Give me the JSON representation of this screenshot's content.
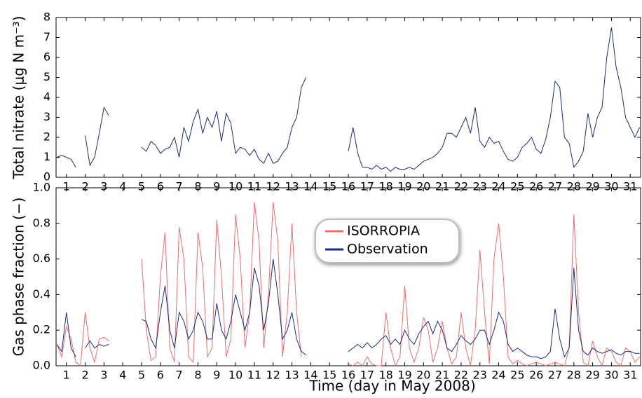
{
  "chart_data": [
    {
      "type": "line",
      "y_label": "Total nitrate (μg N m⁻³)",
      "x": [
        0.5,
        0.75,
        1,
        1.25,
        1.5,
        1.75,
        2,
        2.25,
        2.5,
        2.75,
        3,
        3.25,
        3.5,
        3.75,
        4,
        4.25,
        4.5,
        4.75,
        5,
        5.25,
        5.5,
        5.75,
        6,
        6.25,
        6.5,
        6.75,
        7,
        7.25,
        7.5,
        7.75,
        8,
        8.25,
        8.5,
        8.75,
        9,
        9.25,
        9.5,
        9.75,
        10,
        10.25,
        10.5,
        10.75,
        11,
        11.25,
        11.5,
        11.75,
        12,
        12.25,
        12.5,
        12.75,
        13,
        13.25,
        13.5,
        13.75,
        14,
        14.25,
        14.5,
        14.75,
        15,
        15.25,
        15.5,
        15.75,
        16,
        16.25,
        16.5,
        16.75,
        17,
        17.25,
        17.5,
        17.75,
        18,
        18.25,
        18.5,
        18.75,
        19,
        19.25,
        19.5,
        19.75,
        20,
        20.25,
        20.5,
        20.75,
        21,
        21.25,
        21.5,
        21.75,
        22,
        22.25,
        22.5,
        22.75,
        23,
        23.25,
        23.5,
        23.75,
        24,
        24.25,
        24.5,
        24.75,
        25,
        25.25,
        25.5,
        25.75,
        26,
        26.25,
        26.5,
        26.75,
        27,
        27.25,
        27.5,
        27.75,
        28,
        28.25,
        28.5,
        28.75,
        29,
        29.25,
        29.5,
        29.75,
        30,
        30.25,
        30.5,
        30.75,
        31,
        31.25,
        31.5
      ],
      "series": [
        {
          "name": "Observation",
          "color": "#1a2a80",
          "values": [
            1.0,
            1.1,
            1.0,
            0.9,
            0.5,
            null,
            2.1,
            0.6,
            1.0,
            2.2,
            3.5,
            3.1,
            null,
            null,
            null,
            null,
            null,
            null,
            1.5,
            1.3,
            1.8,
            1.6,
            1.2,
            1.4,
            1.5,
            2.0,
            1.0,
            2.5,
            1.8,
            2.8,
            3.4,
            2.2,
            3.0,
            2.5,
            3.3,
            1.8,
            3.2,
            2.7,
            1.2,
            1.5,
            1.4,
            1.1,
            1.4,
            0.9,
            0.7,
            1.2,
            0.7,
            0.8,
            1.2,
            1.5,
            2.5,
            3.0,
            4.5,
            5.0,
            null,
            null,
            null,
            null,
            null,
            null,
            null,
            null,
            1.3,
            2.5,
            1.2,
            0.5,
            0.5,
            0.4,
            0.6,
            0.4,
            0.5,
            0.3,
            0.5,
            0.4,
            0.4,
            0.5,
            0.4,
            0.6,
            0.8,
            0.9,
            1.0,
            1.2,
            1.5,
            2.2,
            2.2,
            2.0,
            2.5,
            3.0,
            2.2,
            3.5,
            1.8,
            1.5,
            2.0,
            1.7,
            1.8,
            1.3,
            0.9,
            0.8,
            1.0,
            1.5,
            1.7,
            2.0,
            1.4,
            1.2,
            1.9,
            3.0,
            4.8,
            4.5,
            2.0,
            1.7,
            0.5,
            0.8,
            1.3,
            3.2,
            2.0,
            3.0,
            3.5,
            6.0,
            7.5,
            5.5,
            4.5,
            3.0,
            2.5,
            2.0,
            2.5
          ]
        }
      ],
      "xlim": [
        0.45,
        31.55
      ],
      "xticks": [
        1,
        2,
        3,
        4,
        5,
        6,
        7,
        8,
        9,
        10,
        11,
        12,
        13,
        14,
        15,
        16,
        17,
        18,
        19,
        20,
        21,
        22,
        23,
        24,
        25,
        26,
        27,
        28,
        29,
        30,
        31
      ],
      "ylim": [
        0,
        8
      ],
      "yticks": [
        0,
        1,
        2,
        3,
        4,
        5,
        6,
        7,
        8
      ],
      "grid": false
    },
    {
      "type": "line",
      "y_label": "Gas phase fraction (−)",
      "x_label": "Time (day in May 2008)",
      "legend": "upper center",
      "x": [
        0.5,
        0.75,
        1,
        1.25,
        1.5,
        1.75,
        2,
        2.25,
        2.5,
        2.75,
        3,
        3.25,
        3.5,
        3.75,
        4,
        4.25,
        4.5,
        4.75,
        5,
        5.25,
        5.5,
        5.75,
        6,
        6.25,
        6.5,
        6.75,
        7,
        7.25,
        7.5,
        7.75,
        8,
        8.25,
        8.5,
        8.75,
        9,
        9.25,
        9.5,
        9.75,
        10,
        10.25,
        10.5,
        10.75,
        11,
        11.25,
        11.5,
        11.75,
        12,
        12.25,
        12.5,
        12.75,
        13,
        13.25,
        13.5,
        13.75,
        14,
        14.25,
        14.5,
        14.75,
        15,
        15.25,
        15.5,
        15.75,
        16,
        16.25,
        16.5,
        16.75,
        17,
        17.25,
        17.5,
        17.75,
        18,
        18.25,
        18.5,
        18.75,
        19,
        19.25,
        19.5,
        19.75,
        20,
        20.25,
        20.5,
        20.75,
        21,
        21.25,
        21.5,
        21.75,
        22,
        22.25,
        22.5,
        22.75,
        23,
        23.25,
        23.5,
        23.75,
        24,
        24.25,
        24.5,
        24.75,
        25,
        25.25,
        25.5,
        25.75,
        26,
        26.25,
        26.5,
        26.75,
        27,
        27.25,
        27.5,
        27.75,
        28,
        28.25,
        28.5,
        28.75,
        29,
        29.25,
        29.5,
        29.75,
        30,
        30.25,
        30.5,
        30.75,
        31,
        31.25,
        31.5
      ],
      "series": [
        {
          "name": "ISORROPIA",
          "color": "#f26b6b",
          "values": [
            0.12,
            0.05,
            0.22,
            0.15,
            0.02,
            0.0,
            0.3,
            0.1,
            0.02,
            0.15,
            0.16,
            0.14,
            null,
            null,
            null,
            null,
            null,
            null,
            0.6,
            0.2,
            0.03,
            0.05,
            0.5,
            0.75,
            0.1,
            0.02,
            0.78,
            0.6,
            0.05,
            0.02,
            0.75,
            0.55,
            0.05,
            0.1,
            0.82,
            0.5,
            0.05,
            0.15,
            0.85,
            0.6,
            0.1,
            0.3,
            0.92,
            0.7,
            0.1,
            0.4,
            0.92,
            0.7,
            0.05,
            0.3,
            0.8,
            0.3,
            0.05,
            null,
            null,
            null,
            null,
            null,
            null,
            null,
            null,
            null,
            0.01,
            0.0,
            0.02,
            0.0,
            0.05,
            0.01,
            0.0,
            0.0,
            0.3,
            0.1,
            0.0,
            0.05,
            0.45,
            0.1,
            0.02,
            0.1,
            0.27,
            0.2,
            0.02,
            0.1,
            0.25,
            0.1,
            0.01,
            0.05,
            0.3,
            0.1,
            0.0,
            0.2,
            0.65,
            0.3,
            0.01,
            0.6,
            0.8,
            0.5,
            0.05,
            0.01,
            0.03,
            0.01,
            0.0,
            0.01,
            0.02,
            0.01,
            0.0,
            0.01,
            0.02,
            0.01,
            0.0,
            0.1,
            0.85,
            0.3,
            0.02,
            0.0,
            0.14,
            0.05,
            0.0,
            0.1,
            0.08,
            0.02,
            0.0,
            0.1,
            0.08,
            0.02,
            0.05
          ]
        },
        {
          "name": "Observation",
          "color": "#1a2a80",
          "values": [
            0.12,
            0.08,
            0.3,
            0.1,
            0.05,
            null,
            0.1,
            0.14,
            0.1,
            0.12,
            0.11,
            0.12,
            null,
            null,
            null,
            null,
            null,
            null,
            0.26,
            0.25,
            0.15,
            0.1,
            0.3,
            0.45,
            0.2,
            0.1,
            0.3,
            0.25,
            0.15,
            0.2,
            0.3,
            0.25,
            0.15,
            0.15,
            0.35,
            0.2,
            0.15,
            0.25,
            0.4,
            0.3,
            0.2,
            0.3,
            0.55,
            0.45,
            0.2,
            0.35,
            0.6,
            0.4,
            0.15,
            0.2,
            0.3,
            0.15,
            0.08,
            0.06,
            null,
            null,
            null,
            null,
            null,
            null,
            null,
            null,
            0.08,
            0.1,
            0.12,
            0.1,
            0.13,
            0.1,
            0.12,
            0.15,
            0.17,
            0.12,
            0.15,
            0.12,
            0.2,
            0.15,
            0.12,
            0.18,
            0.22,
            0.25,
            0.18,
            0.25,
            0.2,
            0.1,
            0.08,
            0.12,
            0.17,
            0.14,
            0.12,
            0.15,
            0.2,
            0.2,
            0.12,
            0.2,
            0.3,
            0.25,
            0.12,
            0.08,
            0.1,
            0.08,
            0.06,
            0.05,
            0.05,
            0.04,
            0.05,
            0.08,
            0.32,
            0.15,
            0.05,
            0.1,
            0.55,
            0.2,
            0.08,
            0.06,
            0.1,
            0.08,
            0.07,
            0.08,
            0.09,
            0.07,
            0.06,
            0.08,
            0.08,
            0.07,
            0.07
          ]
        }
      ],
      "xlim": [
        0.45,
        31.55
      ],
      "xticks": [
        1,
        2,
        3,
        4,
        5,
        6,
        7,
        8,
        9,
        10,
        11,
        12,
        13,
        14,
        15,
        16,
        17,
        18,
        19,
        20,
        21,
        22,
        23,
        24,
        25,
        26,
        27,
        28,
        29,
        30,
        31
      ],
      "ylim": [
        0,
        1
      ],
      "yticks": [
        {
          "value": 0,
          "label": "0.0"
        },
        0.2,
        0.4,
        0.6,
        0.8,
        {
          "value": 1,
          "label": "1.0"
        }
      ],
      "grid": false
    }
  ]
}
